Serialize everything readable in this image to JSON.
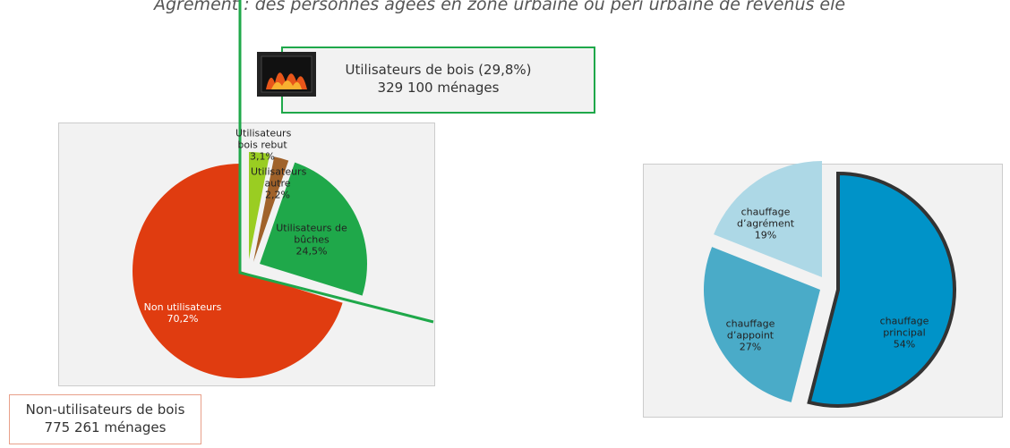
{
  "header": {
    "title": "Agrément : des personnes âgées en zone urbaine ou péri urbaine de revenus éle"
  },
  "callouts": [
    {
      "line1": "Utilisateurs de bois (29,8%)",
      "line2": "329 100 ménages"
    },
    {
      "line1": "Non-utilisateurs de bois",
      "line2": "775 261 ménages"
    }
  ],
  "chart_data": [
    {
      "type": "pie",
      "categories": [
        "Utilisateurs bois rebut",
        "Utilisateurs autre",
        "Utilisateurs de bûches",
        "Non utilisateurs"
      ],
      "values": [
        3.1,
        2.2,
        24.5,
        70.2
      ],
      "value_labels": [
        "3,1%",
        "2,2%",
        "24,5%",
        "70,2%"
      ],
      "colors": [
        "#9acd22",
        "#a0622a",
        "#1fa84a",
        "#e03c10"
      ]
    },
    {
      "type": "pie",
      "categories": [
        "chauffage principal",
        "chauffage d’appoint",
        "chauffage d’agrément"
      ],
      "values": [
        54,
        27,
        19
      ],
      "value_labels": [
        "54%",
        "27%",
        "19%"
      ],
      "colors": [
        "#0093c8",
        "#4aabc8",
        "#add8e6"
      ]
    }
  ]
}
